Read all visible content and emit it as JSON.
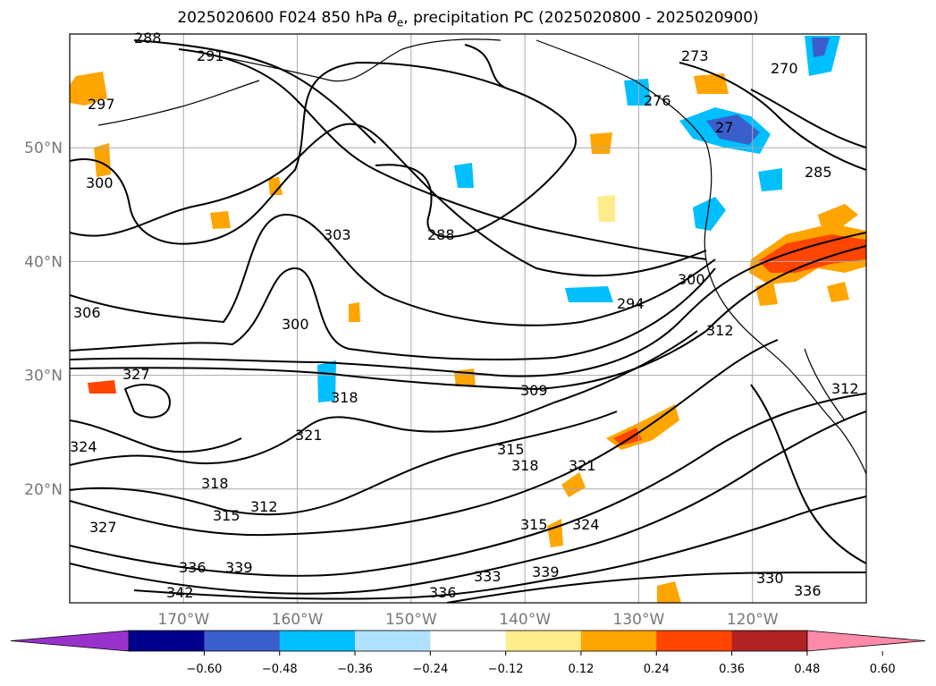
{
  "title": {
    "prefix": "2025020600 F024 850 hPa ",
    "theta": "θ",
    "theta_sub": "e",
    "suffix": ", precipitation PC (2025020800 - 2025020900)"
  },
  "map": {
    "lon_range": [
      -180,
      -110
    ],
    "lat_range": [
      10,
      60
    ],
    "lat_labels": [
      {
        "lat": 50,
        "text": "50°N"
      },
      {
        "lat": 40,
        "text": "40°N"
      },
      {
        "lat": 30,
        "text": "30°N"
      },
      {
        "lat": 20,
        "text": "20°N"
      }
    ],
    "lon_labels": [
      {
        "lon": -170,
        "text": "170°W"
      },
      {
        "lon": -160,
        "text": "160°W"
      },
      {
        "lon": -150,
        "text": "150°W"
      },
      {
        "lon": -140,
        "text": "140°W"
      },
      {
        "lon": -130,
        "text": "130°W"
      },
      {
        "lon": -120,
        "text": "120°W"
      }
    ],
    "contour_labels": [
      "288",
      "291",
      "297",
      "300",
      "303",
      "306",
      "300",
      "327",
      "324",
      "318",
      "315",
      "312",
      "321",
      "327",
      "336",
      "339",
      "342",
      "318",
      "309",
      "315",
      "318",
      "321",
      "315",
      "324",
      "339",
      "333",
      "336",
      "294",
      "300",
      "312",
      "288",
      "273",
      "270",
      "276",
      "27",
      "285",
      "330",
      "336",
      "312"
    ]
  },
  "colorbar": {
    "colors": [
      "#9932CC",
      "#00008B",
      "#3A5FCD",
      "#00BFFF",
      "#B0E2FF",
      "#FFFFFF",
      "#FFEC8B",
      "#FFA500",
      "#FF4500",
      "#B22222",
      "#FF89A8"
    ],
    "ticks": [
      "−0.60",
      "−0.48",
      "−0.36",
      "−0.24",
      "−0.12",
      "0.12",
      "0.24",
      "0.36",
      "0.48",
      "0.60"
    ]
  }
}
